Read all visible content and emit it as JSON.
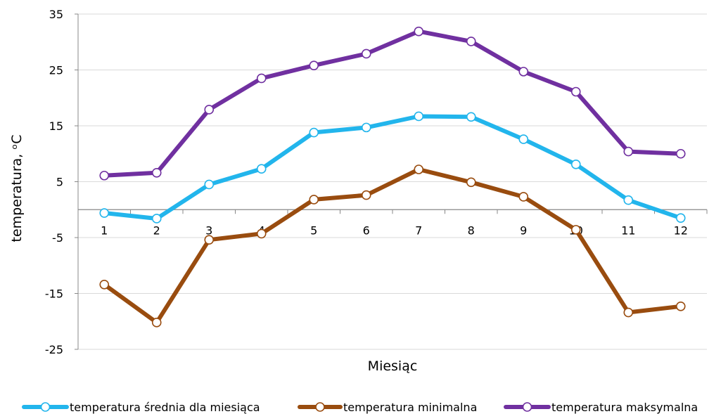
{
  "chart_data": {
    "type": "line",
    "title": "",
    "xlabel": "Miesiąc",
    "ylabel": "temperatura, ᵒC",
    "categories": [
      "1",
      "2",
      "3",
      "4",
      "5",
      "6",
      "7",
      "8",
      "9",
      "10",
      "11",
      "12"
    ],
    "y_ticks": [
      "35",
      "25",
      "15",
      "5",
      "-5",
      "-15",
      "-25"
    ],
    "ylim": [
      -25,
      35
    ],
    "grid": "horizontal",
    "legend_position": "bottom",
    "series": [
      {
        "name": "temperatura średnia dla miesiąca",
        "color": "#22b5ec",
        "values": [
          -0.6,
          -1.6,
          4.5,
          7.3,
          13.8,
          14.7,
          16.7,
          16.6,
          12.6,
          8.1,
          1.7,
          -1.5
        ]
      },
      {
        "name": "temperatura minimalna",
        "color": "#994c0f",
        "values": [
          -13.4,
          -20.2,
          -5.4,
          -4.3,
          1.8,
          2.6,
          7.2,
          4.9,
          2.3,
          -3.6,
          -18.4,
          -17.3
        ]
      },
      {
        "name": "temperatura maksymalna",
        "color": "#7030a0",
        "values": [
          6.1,
          6.6,
          17.9,
          23.5,
          25.8,
          27.9,
          31.9,
          30.1,
          24.7,
          21.1,
          10.4,
          10.0
        ]
      }
    ]
  }
}
